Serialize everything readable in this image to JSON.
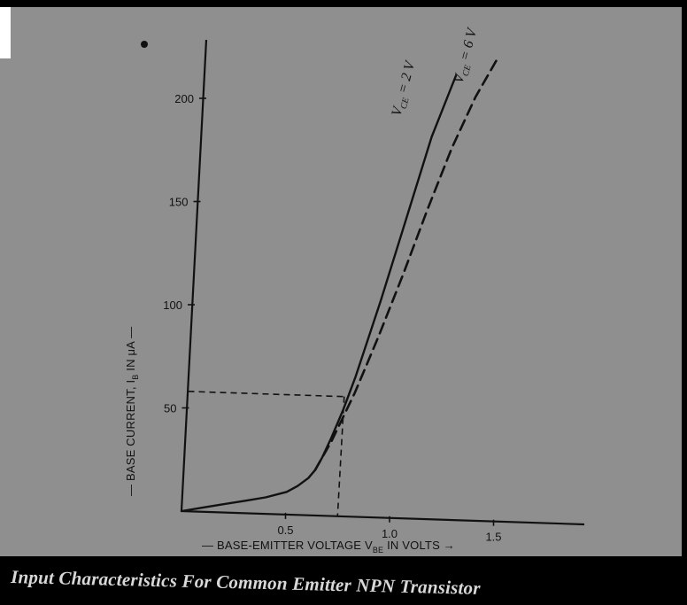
{
  "chart_data": {
    "type": "line",
    "title": "",
    "caption": "Input Characteristics For Common  Emitter NPN Transistor",
    "xlabel": "— BASE-EMITTER VOLTAGE V",
    "xlabel_subscript": "BE",
    "xlabel_suffix": " IN VOLTS  →",
    "ylabel": "— BASE CURRENT, I",
    "ylabel_subscript": "B",
    "ylabel_suffix": " IN μA —",
    "xlim": [
      0,
      1.8
    ],
    "ylim": [
      0,
      215
    ],
    "x_ticks": [
      {
        "value": 0.5,
        "label": "0.5"
      },
      {
        "value": 1.0,
        "label": "1.0"
      },
      {
        "value": 1.5,
        "label": "1.5"
      }
    ],
    "y_ticks": [
      {
        "value": 50,
        "label": "50"
      },
      {
        "value": 100,
        "label": "100"
      },
      {
        "value": 150,
        "label": "150"
      },
      {
        "value": 200,
        "label": "200"
      }
    ],
    "series": [
      {
        "name": "V_CE = 2 V",
        "label_main": "V",
        "label_sub": "CE",
        "label_tail": " = 2 V",
        "style": "solid",
        "x": [
          0.0,
          0.1,
          0.2,
          0.3,
          0.4,
          0.5,
          0.55,
          0.6,
          0.63,
          0.66,
          0.7,
          0.75,
          0.8,
          0.9,
          1.0,
          1.1,
          1.2
        ],
        "y": [
          0,
          2,
          4,
          6,
          8,
          11,
          14,
          18,
          22,
          28,
          38,
          52,
          68,
          105,
          145,
          185,
          215
        ]
      },
      {
        "name": "V_CE = 6 V",
        "label_main": "V",
        "label_sub": "CE",
        "label_tail": " = 6 V",
        "style": "dashed",
        "x": [
          0.63,
          0.66,
          0.7,
          0.75,
          0.8,
          0.85,
          0.9,
          1.0,
          1.1,
          1.2,
          1.3,
          1.4
        ],
        "y": [
          22,
          28,
          36,
          48,
          60,
          74,
          88,
          118,
          150,
          180,
          205,
          225
        ]
      }
    ],
    "reference_lines": {
      "x": 0.75,
      "y": 58
    }
  }
}
